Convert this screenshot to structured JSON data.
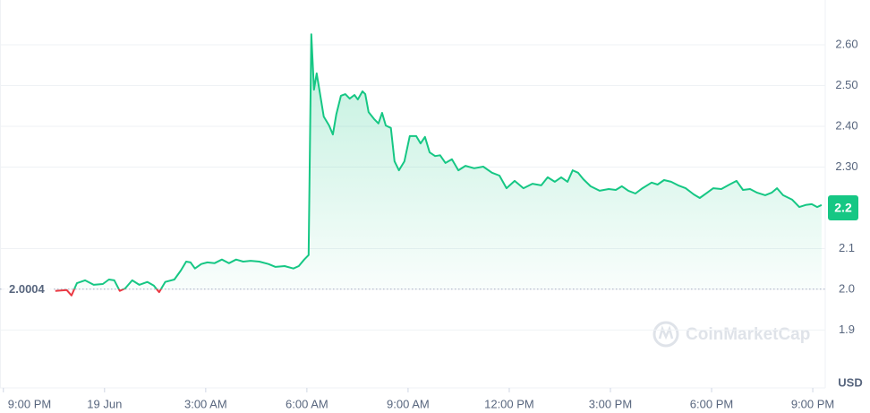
{
  "chart_data": {
    "type": "line",
    "x": [
      1.54,
      1.88,
      2.02,
      2.18,
      2.42,
      2.68,
      2.95,
      3.13,
      3.29,
      3.45,
      3.61,
      3.82,
      4.03,
      4.27,
      4.46,
      4.62,
      4.8,
      5.07,
      5.26,
      5.42,
      5.55,
      5.68,
      5.87,
      6.05,
      6.26,
      6.48,
      6.69,
      6.9,
      7.11,
      7.33,
      7.59,
      7.86,
      8.07,
      8.34,
      8.6,
      8.76,
      8.92,
      9.05,
      9.13,
      9.21,
      9.29,
      9.37,
      9.5,
      9.66,
      9.77,
      9.87,
      10.01,
      10.14,
      10.27,
      10.41,
      10.51,
      10.65,
      10.73,
      10.83,
      10.99,
      11.12,
      11.23,
      11.34,
      11.49,
      11.6,
      11.73,
      11.89,
      12.05,
      12.24,
      12.37,
      12.5,
      12.64,
      12.8,
      12.95,
      13.11,
      13.3,
      13.49,
      13.7,
      13.96,
      14.23,
      14.49,
      14.71,
      14.92,
      15.16,
      15.42,
      15.69,
      15.95,
      16.14,
      16.35,
      16.54,
      16.73,
      16.88,
      17.04,
      17.2,
      17.41,
      17.68,
      17.95,
      18.16,
      18.34,
      18.53,
      18.74,
      18.95,
      19.22,
      19.4,
      19.59,
      19.8,
      20.01,
      20.23,
      20.47,
      20.65,
      20.87,
      21.05,
      21.29,
      21.53,
      21.74,
      21.93,
      22.14,
      22.35,
      22.59,
      22.78,
      22.94,
      23.12,
      23.39,
      23.6,
      23.79,
      23.97,
      24.13,
      24.26
    ],
    "series": [
      {
        "name": "Price",
        "color": "#16c784",
        "color_below": "#ea3943",
        "values": [
          1.996,
          1.998,
          1.985,
          2.015,
          2.022,
          2.011,
          2.013,
          2.024,
          2.022,
          1.996,
          2.002,
          2.022,
          2.011,
          2.018,
          2.009,
          1.993,
          2.018,
          2.024,
          2.046,
          2.068,
          2.066,
          2.051,
          2.062,
          2.066,
          2.064,
          2.073,
          2.064,
          2.073,
          2.068,
          2.07,
          2.068,
          2.062,
          2.055,
          2.057,
          2.051,
          2.057,
          2.073,
          2.084,
          2.626,
          2.49,
          2.53,
          2.49,
          2.424,
          2.402,
          2.38,
          2.429,
          2.475,
          2.479,
          2.468,
          2.477,
          2.466,
          2.486,
          2.479,
          2.435,
          2.418,
          2.407,
          2.433,
          2.402,
          2.396,
          2.314,
          2.292,
          2.314,
          2.376,
          2.376,
          2.358,
          2.374,
          2.336,
          2.327,
          2.329,
          2.31,
          2.319,
          2.292,
          2.303,
          2.297,
          2.301,
          2.286,
          2.279,
          2.248,
          2.266,
          2.248,
          2.259,
          2.255,
          2.275,
          2.264,
          2.275,
          2.264,
          2.292,
          2.286,
          2.27,
          2.253,
          2.242,
          2.246,
          2.244,
          2.253,
          2.242,
          2.235,
          2.248,
          2.262,
          2.257,
          2.268,
          2.264,
          2.255,
          2.248,
          2.233,
          2.224,
          2.237,
          2.248,
          2.246,
          2.257,
          2.266,
          2.244,
          2.246,
          2.237,
          2.231,
          2.237,
          2.248,
          2.231,
          2.22,
          2.202,
          2.207,
          2.209,
          2.202,
          2.207
        ]
      }
    ],
    "baseline": 2.0004,
    "current_price": 2.2,
    "xlim": [
      -0.1,
      24.37
    ],
    "xticks": [
      {
        "value": 0,
        "label": "9:00 PM"
      },
      {
        "value": 3,
        "label": "19 Jun"
      },
      {
        "value": 6,
        "label": "3:00 AM"
      },
      {
        "value": 9,
        "label": "6:00 AM"
      },
      {
        "value": 12,
        "label": "9:00 AM"
      },
      {
        "value": 15,
        "label": "12:00 PM"
      },
      {
        "value": 18,
        "label": "3:00 PM"
      },
      {
        "value": 21,
        "label": "6:00 PM"
      },
      {
        "value": 24,
        "label": "9:00 PM"
      }
    ],
    "ylim": [
      1.758,
      2.699
    ],
    "yticks": [
      1.9,
      {
        "value": 2,
        "label": "2.0"
      },
      2.1,
      {
        "value": 2.3,
        "label": "2.30"
      },
      {
        "value": 2.4,
        "label": "2.40"
      },
      {
        "value": 2.5,
        "label": "2.50"
      },
      {
        "value": 2.6,
        "label": "2.60"
      }
    ],
    "grid": true,
    "currency_label": "USD",
    "watermark": "CoinMarketCap"
  }
}
